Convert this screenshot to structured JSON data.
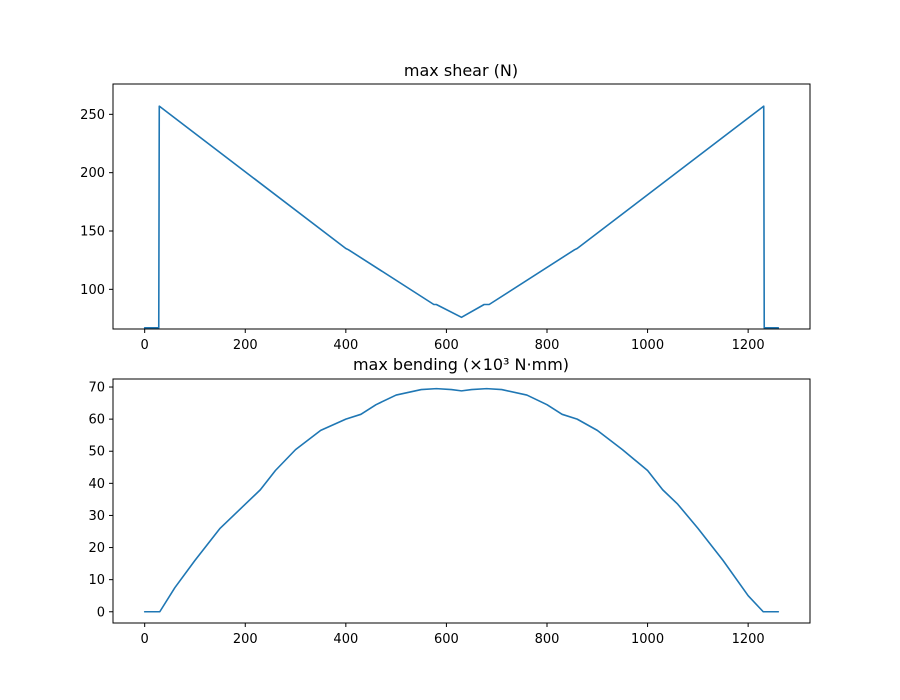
{
  "chart_data": [
    {
      "type": "line",
      "title": "max shear (N)",
      "xlabel": "",
      "ylabel": "",
      "xlim": [
        -63,
        1323
      ],
      "ylim": [
        66,
        276
      ],
      "xticks": [
        0,
        200,
        400,
        600,
        800,
        1000,
        1200
      ],
      "xtick_labels": [
        "0",
        "200",
        "400",
        "600",
        "800",
        "1000",
        "1200"
      ],
      "yticks": [
        100,
        150,
        200,
        250
      ],
      "ytick_labels": [
        "100",
        "150",
        "200",
        "250"
      ],
      "grid": false,
      "series": [
        {
          "color": "#1f77b4",
          "x": [
            0,
            27,
            28,
            29,
            400,
            405,
            575,
            580,
            630,
            675,
            685,
            855,
            860,
            1231,
            1232,
            1233,
            1260
          ],
          "y": [
            67,
            67,
            67,
            257,
            135,
            134,
            87,
            87,
            76,
            87,
            87,
            134,
            135,
            257,
            67,
            67,
            67
          ]
        }
      ]
    },
    {
      "type": "line",
      "title": "max bending (×10³ N·mm)",
      "xlabel": "",
      "ylabel": "",
      "xlim": [
        -63,
        1323
      ],
      "ylim": [
        -3.5,
        72.5
      ],
      "xticks": [
        0,
        200,
        400,
        600,
        800,
        1000,
        1200
      ],
      "xtick_labels": [
        "0",
        "200",
        "400",
        "600",
        "800",
        "1000",
        "1200"
      ],
      "yticks": [
        0,
        10,
        20,
        30,
        40,
        50,
        60,
        70
      ],
      "ytick_labels": [
        "0",
        "10",
        "20",
        "30",
        "40",
        "50",
        "60",
        "70"
      ],
      "grid": false,
      "series": [
        {
          "color": "#1f77b4",
          "x": [
            0,
            30,
            60,
            100,
            150,
            200,
            230,
            260,
            300,
            350,
            400,
            430,
            460,
            500,
            550,
            580,
            610,
            630,
            650,
            680,
            710,
            760,
            800,
            830,
            860,
            900,
            950,
            1000,
            1030,
            1060,
            1100,
            1150,
            1200,
            1230,
            1260
          ],
          "y": [
            0,
            0,
            7.5,
            16,
            26,
            33.5,
            38,
            44,
            50.5,
            56.5,
            60,
            61.5,
            64.5,
            67.5,
            69.2,
            69.5,
            69.2,
            68.8,
            69.2,
            69.5,
            69.2,
            67.5,
            64.5,
            61.5,
            60,
            56.5,
            50.5,
            44,
            38,
            33.5,
            26,
            16,
            5,
            0,
            0
          ]
        }
      ]
    }
  ]
}
